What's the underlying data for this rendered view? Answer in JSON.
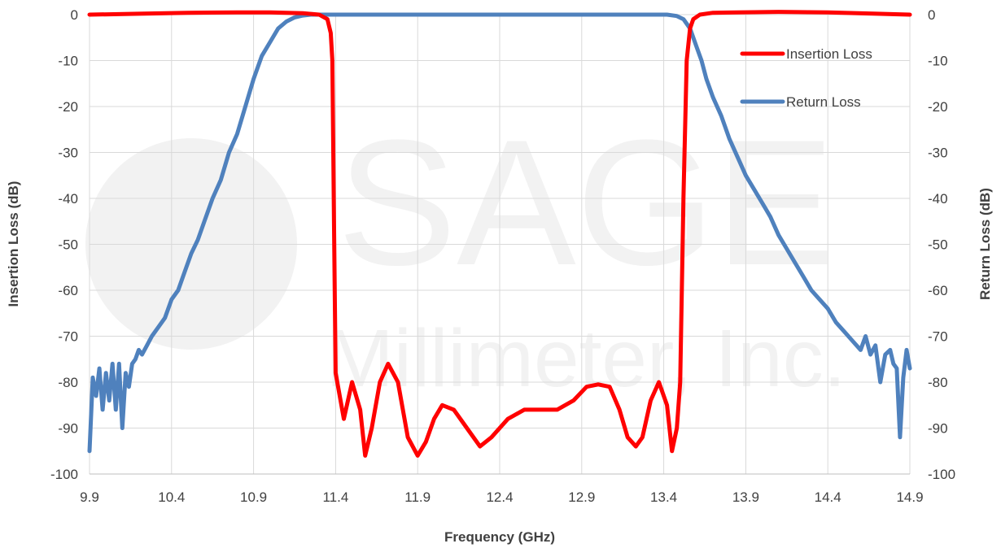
{
  "chart_data": {
    "type": "line",
    "title": "",
    "xlabel": "Frequency (GHz)",
    "ylabel_left": "Insertion  Loss (dB)",
    "ylabel_right": "Return Loss (dB)",
    "xlim": [
      9.9,
      14.9
    ],
    "ylim": [
      -100,
      0
    ],
    "x_ticks": [
      "9.9",
      "10.4",
      "10.9",
      "11.4",
      "11.9",
      "12.4",
      "12.9",
      "13.4",
      "13.9",
      "14.4",
      "14.9"
    ],
    "y_ticks_left": [
      "0",
      "-10",
      "-20",
      "-30",
      "-40",
      "-50",
      "-60",
      "-70",
      "-80",
      "-90",
      "-100"
    ],
    "y_ticks_right": [
      "0",
      "-10",
      "-20",
      "-30",
      "-40",
      "-50",
      "-60",
      "-70",
      "-80",
      "-90",
      "-100"
    ],
    "grid": true,
    "legend_position": "top-right",
    "watermark": {
      "line1": "SAGE",
      "line2": "Millimeter, Inc."
    },
    "series": [
      {
        "name": "Insertion Loss",
        "color": "#ff0000",
        "x": [
          9.9,
          10.2,
          10.5,
          10.8,
          11.0,
          11.2,
          11.3,
          11.35,
          11.37,
          11.38,
          11.39,
          11.4,
          11.45,
          11.5,
          11.55,
          11.58,
          11.62,
          11.67,
          11.72,
          11.78,
          11.84,
          11.9,
          11.95,
          12.0,
          12.05,
          12.12,
          12.2,
          12.28,
          12.35,
          12.45,
          12.55,
          12.65,
          12.75,
          12.85,
          12.93,
          13.0,
          13.07,
          13.13,
          13.18,
          13.23,
          13.27,
          13.32,
          13.37,
          13.42,
          13.45,
          13.48,
          13.5,
          13.52,
          13.54,
          13.56,
          13.58,
          13.62,
          13.7,
          13.85,
          14.1,
          14.4,
          14.7,
          14.9
        ],
        "y": [
          0,
          0.2,
          0.4,
          0.5,
          0.5,
          0.3,
          0,
          -1,
          -4,
          -10,
          -45,
          -78,
          -88,
          -80,
          -86,
          -96,
          -90,
          -80,
          -76,
          -80,
          -92,
          -96,
          -93,
          -88,
          -85,
          -86,
          -90,
          -94,
          -92,
          -88,
          -86,
          -86,
          -86,
          -84,
          -81,
          -80.5,
          -81,
          -86,
          -92,
          -94,
          -92,
          -84,
          -80,
          -85,
          -95,
          -90,
          -80,
          -40,
          -10,
          -3,
          -1,
          0,
          0.4,
          0.5,
          0.6,
          0.5,
          0.2,
          0
        ]
      },
      {
        "name": "Return Loss",
        "color": "#4f81bd",
        "x": [
          9.9,
          9.92,
          9.94,
          9.96,
          9.98,
          10.0,
          10.02,
          10.04,
          10.06,
          10.08,
          10.1,
          10.12,
          10.14,
          10.16,
          10.18,
          10.2,
          10.22,
          10.25,
          10.28,
          10.32,
          10.36,
          10.4,
          10.44,
          10.48,
          10.52,
          10.56,
          10.6,
          10.65,
          10.7,
          10.75,
          10.8,
          10.85,
          10.9,
          10.95,
          11.0,
          11.05,
          11.1,
          11.15,
          11.2,
          11.25,
          11.28,
          11.31,
          11.34,
          11.36,
          11.38,
          11.4,
          11.45,
          11.6,
          12.0,
          12.5,
          13.0,
          13.3,
          13.42,
          13.48,
          13.52,
          13.56,
          13.6,
          13.63,
          13.66,
          13.7,
          13.75,
          13.8,
          13.85,
          13.9,
          13.95,
          14.0,
          14.05,
          14.1,
          14.15,
          14.2,
          14.25,
          14.3,
          14.35,
          14.4,
          14.45,
          14.5,
          14.55,
          14.6,
          14.63,
          14.66,
          14.69,
          14.72,
          14.75,
          14.78,
          14.8,
          14.82,
          14.84,
          14.86,
          14.88,
          14.9
        ],
        "y": [
          -95,
          -79,
          -83,
          -77,
          -86,
          -78,
          -84,
          -76,
          -86,
          -76,
          -90,
          -78,
          -81,
          -76,
          -75,
          -73,
          -74,
          -72,
          -70,
          -68,
          -66,
          -62,
          -60,
          -56,
          -52,
          -49,
          -45,
          -40,
          -36,
          -30,
          -26,
          -20,
          -14,
          -9,
          -6,
          -3,
          -1.5,
          -0.6,
          -0.2,
          0,
          0,
          0,
          0,
          0,
          0,
          0,
          0,
          0,
          0,
          0,
          0,
          0,
          0,
          -0.3,
          -1,
          -3,
          -7,
          -10,
          -14,
          -18,
          -22,
          -27,
          -31,
          -35,
          -38,
          -41,
          -44,
          -48,
          -51,
          -54,
          -57,
          -60,
          -62,
          -64,
          -67,
          -69,
          -71,
          -73,
          -70,
          -74,
          -72,
          -80,
          -74,
          -73,
          -76,
          -77,
          -92,
          -79,
          -73,
          -77
        ]
      }
    ]
  }
}
